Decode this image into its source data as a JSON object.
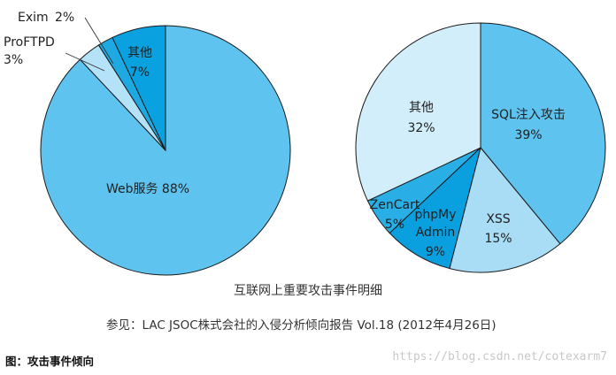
{
  "chart_data": [
    {
      "type": "pie",
      "slices": [
        {
          "label": "Web服务",
          "value": 88,
          "display": "88%",
          "color": "#5ec3ef"
        },
        {
          "label": "ProFTPD",
          "value": 3,
          "display": "3%",
          "color": "#b4e2f8"
        },
        {
          "label": "Exim",
          "value": 2,
          "display": "2%",
          "color": "#1fa9e3"
        },
        {
          "label": "其他",
          "value": 7,
          "display": "7%",
          "color": "#09a1e0"
        }
      ]
    },
    {
      "type": "pie",
      "slices": [
        {
          "label": "SQL注入攻击",
          "value": 39,
          "display": "39%",
          "color": "#5ec3ef"
        },
        {
          "label": "XSS",
          "value": 15,
          "display": "15%",
          "color": "#a9dcf5"
        },
        {
          "label": "phpMy Admin",
          "value": 9,
          "display": "9%",
          "color": "#0a9fdf"
        },
        {
          "label": "ZenCart",
          "value": 5,
          "display": "5%",
          "color": "#29afe6"
        },
        {
          "label": "其他",
          "value": 32,
          "display": "32%",
          "color": "#d3eefb"
        }
      ]
    }
  ],
  "caption": {
    "title": "互联网上重要攻击事件明细",
    "source": "参见：LAC JSOC株式会社的入侵分析倾向报告 Vol.18 (2012年4月26日)"
  },
  "figure_label": "图：攻击事件倾向",
  "watermark": "https://blog.csdn.net/cotexarm7"
}
